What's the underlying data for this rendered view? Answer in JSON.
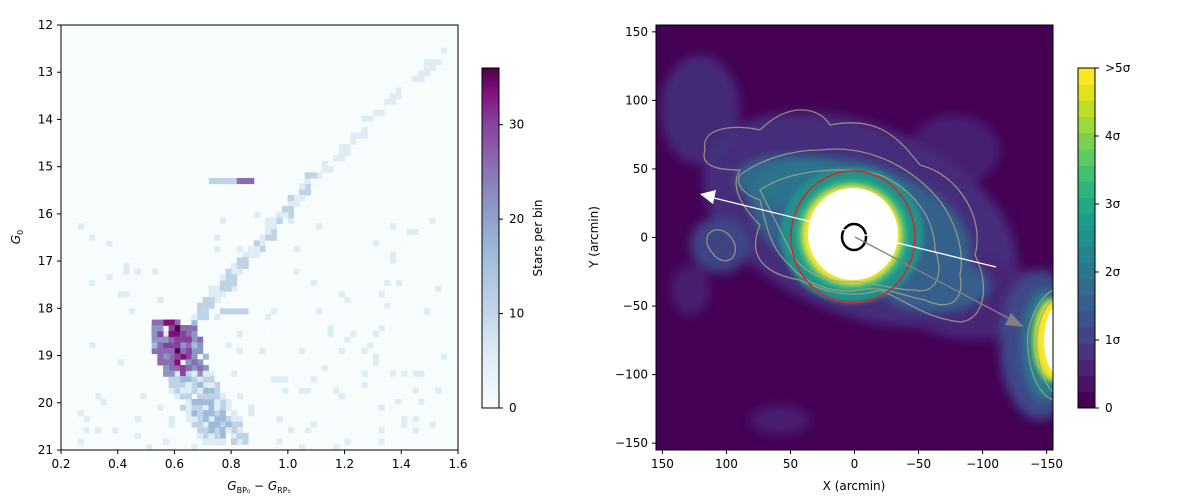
{
  "chart_data": [
    {
      "type": "heatmap",
      "title": "",
      "xlabel": "G_BP0 − G_RP0",
      "ylabel": "G_0",
      "xlim": [
        0.2,
        1.6
      ],
      "ylim": [
        21,
        12
      ],
      "y_inverted": true,
      "xticks": [
        "0.2",
        "0.4",
        "0.6",
        "0.8",
        "1.0",
        "1.2",
        "1.4",
        "1.6"
      ],
      "xtick_values": [
        0.2,
        0.4,
        0.6,
        0.8,
        1.0,
        1.2,
        1.4,
        1.6
      ],
      "yticks": [
        "12",
        "13",
        "14",
        "15",
        "16",
        "17",
        "18",
        "19",
        "20",
        "21"
      ],
      "ytick_values": [
        12,
        13,
        14,
        15,
        16,
        17,
        18,
        19,
        20,
        21
      ],
      "colorbar": {
        "label": "Stars per bin",
        "range": [
          0,
          36
        ],
        "ticks": [
          "0",
          "10",
          "20",
          "30"
        ],
        "tick_values": [
          0,
          10,
          20,
          30
        ],
        "colormap": "BuPu"
      },
      "features": [
        {
          "feature": "red giant branch",
          "color": [
            1.08,
            1.55
          ],
          "mag": [
            15.2,
            12.5
          ],
          "level": 3
        },
        {
          "feature": "red clump",
          "color": [
            0.74,
            0.88
          ],
          "mag": [
            15.25,
            15.3
          ],
          "level": 25
        },
        {
          "feature": "subgiant branch",
          "color": [
            0.7,
            1.05
          ],
          "mag": [
            18.0,
            15.2
          ],
          "level": 8
        },
        {
          "feature": "main sequence turnoff",
          "color": [
            0.55,
            0.75
          ],
          "mag": [
            18.2,
            19.9
          ],
          "level": 34
        },
        {
          "feature": "blue horizontal branch",
          "color": [
            0.75,
            0.86
          ],
          "mag": [
            18.0,
            18.0
          ],
          "level": 10
        }
      ]
    },
    {
      "type": "heatmap",
      "title": "",
      "xlabel": "X (arcmin)",
      "ylabel": "Y (arcmin)",
      "xlim": [
        155,
        -155
      ],
      "ylim": [
        -155,
        155
      ],
      "x_inverted": true,
      "xticks": [
        "150",
        "100",
        "50",
        "0",
        "−50",
        "−100",
        "−150"
      ],
      "xtick_values": [
        150,
        100,
        50,
        0,
        -50,
        -100,
        -150
      ],
      "yticks": [
        "150",
        "100",
        "50",
        "0",
        "−50",
        "−100",
        "−150"
      ],
      "ytick_values": [
        150,
        100,
        50,
        0,
        -50,
        -100,
        -150
      ],
      "colorbar": {
        "label": "",
        "range": [
          0,
          5
        ],
        "ticks": [
          "0",
          "1σ",
          "2σ",
          "3σ",
          "4σ",
          ">5σ"
        ],
        "tick_values": [
          0,
          1,
          2,
          3,
          4,
          5
        ],
        "colormap": "viridis"
      },
      "annotations": [
        {
          "kind": "circle",
          "color": "#d62728",
          "center": [
            0,
            0
          ],
          "radius": 47
        },
        {
          "kind": "ellipse",
          "color": "#000000",
          "center": [
            0,
            0
          ],
          "radii": [
            9,
            10
          ]
        },
        {
          "kind": "arrow",
          "color": "#ffffff",
          "from": [
            -103,
            -22
          ],
          "to": [
            115,
            32
          ]
        },
        {
          "kind": "arrow",
          "color": "#808080",
          "from": [
            0,
            0
          ],
          "to": [
            -125,
            -65
          ]
        }
      ],
      "features": [
        {
          "feature": "saturated core",
          "center": [
            0,
            0
          ],
          "radius": 34
        },
        {
          "feature": "saturated companion",
          "center": [
            -150,
            -75
          ],
          "radius": 28
        }
      ]
    }
  ]
}
